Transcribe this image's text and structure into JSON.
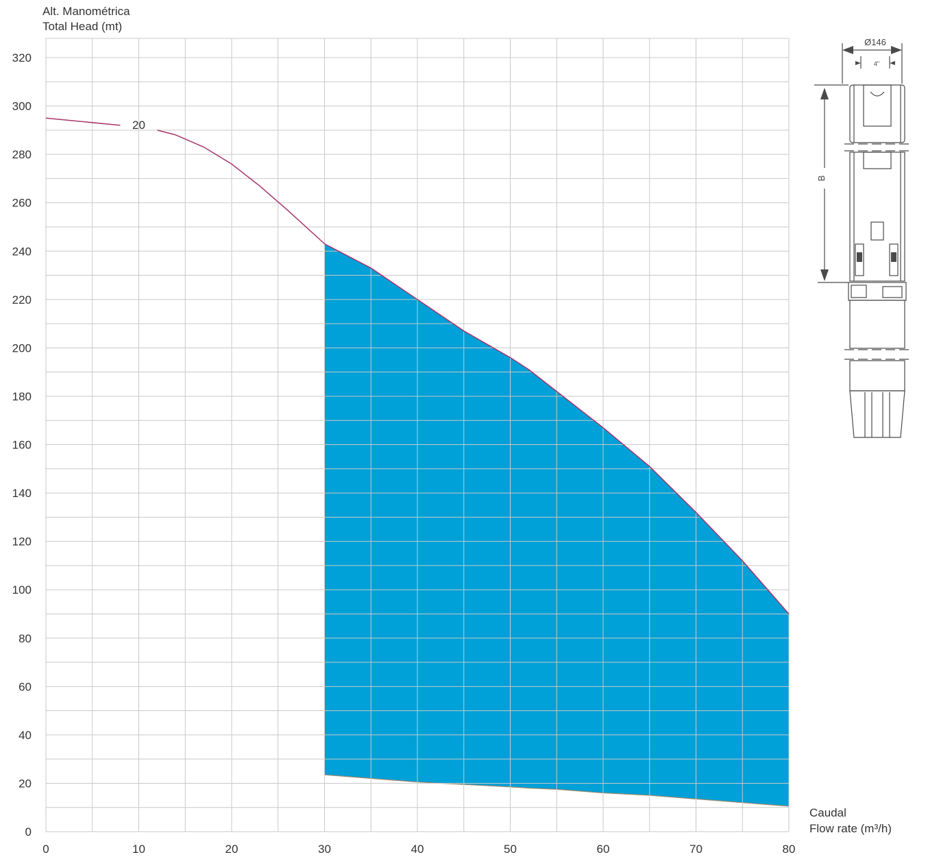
{
  "chart_data": {
    "type": "area",
    "title": "",
    "ylabel": [
      "Alt. Manométrica",
      "Total Head (mt)"
    ],
    "xlabel": [
      "Caudal",
      "Flow rate (m³/h)"
    ],
    "xlim": [
      0,
      80
    ],
    "ylim": [
      0,
      320
    ],
    "x_ticks": [
      0,
      10,
      20,
      30,
      40,
      50,
      60,
      70,
      80
    ],
    "y_ticks": [
      0,
      20,
      40,
      60,
      80,
      100,
      120,
      140,
      160,
      180,
      200,
      220,
      240,
      260,
      280,
      300,
      320
    ],
    "grid": true,
    "series": [
      {
        "name": "20",
        "type": "line",
        "color": "#a9356c",
        "x": [
          0,
          8,
          12,
          14,
          17,
          20,
          23,
          26,
          28,
          30,
          35,
          40,
          45,
          50,
          52,
          55,
          60,
          65,
          70,
          75,
          80
        ],
        "y": [
          295,
          292,
          290,
          288,
          283,
          276,
          267,
          257,
          250,
          243,
          233,
          220,
          207,
          196,
          191,
          182,
          167,
          151,
          132,
          112,
          90
        ]
      },
      {
        "name": "",
        "type": "band",
        "color": "#00a0d8",
        "x": [
          30,
          35,
          40,
          45,
          50,
          52,
          55,
          60,
          65,
          70,
          75,
          80
        ],
        "upper": [
          243,
          233,
          220,
          207,
          196,
          191,
          182,
          167,
          151,
          132,
          112,
          90
        ],
        "lower": [
          23.5,
          22,
          20.5,
          19.5,
          18.5,
          18,
          17.5,
          16,
          15,
          13.5,
          12,
          10.5
        ]
      }
    ],
    "curve_label": "20"
  },
  "pump_drawing": {
    "diameter_label": "Ø146",
    "inner_label": "4\"",
    "length_label": "B"
  }
}
